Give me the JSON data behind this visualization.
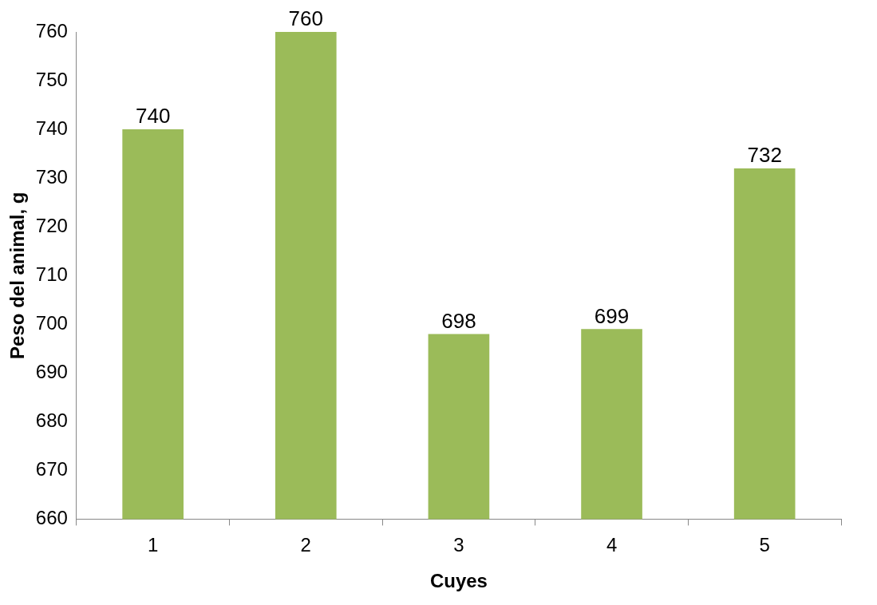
{
  "chart_data": {
    "type": "bar",
    "xlabel": "Cuyes",
    "ylabel": "Peso del animal, g",
    "categories": [
      "1",
      "2",
      "3",
      "4",
      "5"
    ],
    "values": [
      740,
      760,
      698,
      699,
      732
    ],
    "color": "#9bbb59",
    "ylim": [
      660,
      760
    ],
    "yticks": [
      660,
      670,
      680,
      690,
      700,
      710,
      720,
      730,
      740,
      750,
      760
    ],
    "grid": false,
    "legend": false,
    "data_labels": true
  }
}
